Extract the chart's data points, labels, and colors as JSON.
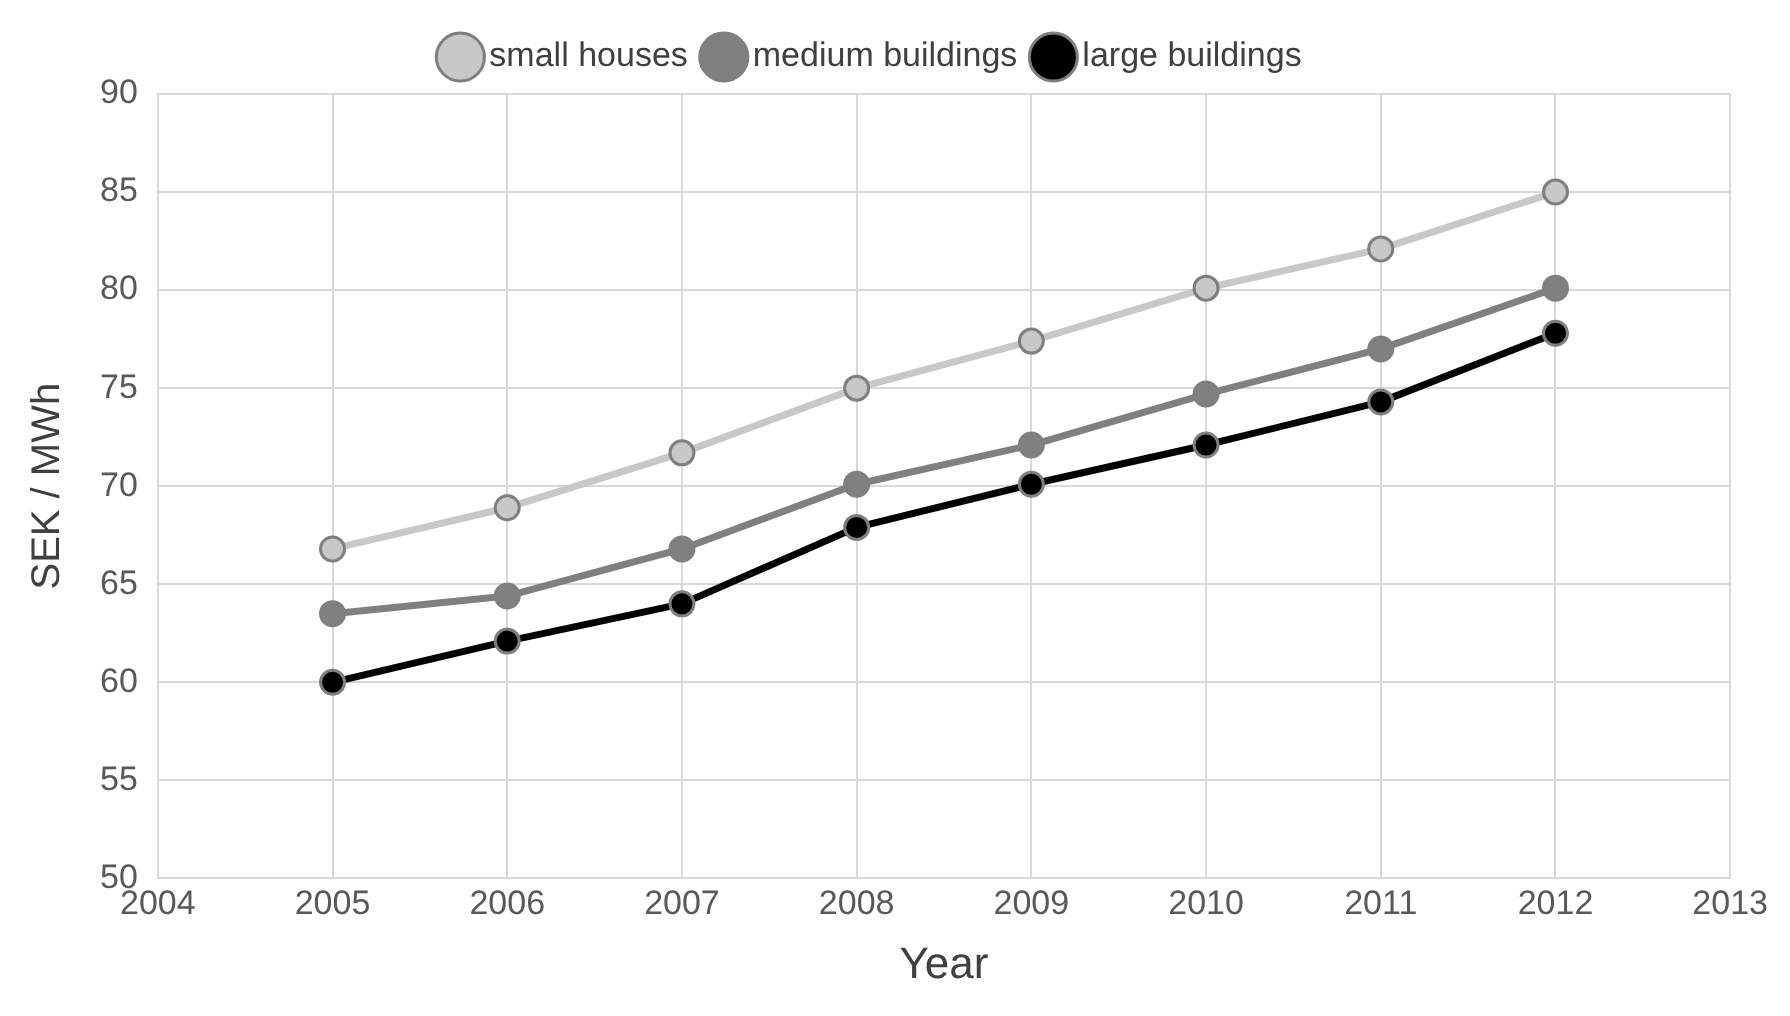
{
  "chart_data": {
    "type": "line",
    "xlabel": "Year",
    "ylabel": "SEK / MWh",
    "x": [
      2005,
      2006,
      2007,
      2008,
      2009,
      2010,
      2011,
      2012
    ],
    "series": [
      {
        "name": "small houses",
        "color": "#c8c8c8",
        "values": [
          66.8,
          68.9,
          71.7,
          75.0,
          77.4,
          80.1,
          82.1,
          85.0
        ]
      },
      {
        "name": "medium buildings",
        "color": "#808080",
        "values": [
          63.5,
          64.4,
          66.8,
          70.1,
          72.1,
          74.7,
          77.0,
          80.1
        ]
      },
      {
        "name": "large buildings",
        "color": "#000000",
        "values": [
          60.0,
          62.1,
          64.0,
          67.9,
          70.1,
          72.1,
          74.3,
          77.8
        ]
      }
    ],
    "xlim": [
      2004,
      2013
    ],
    "xticks": [
      2004,
      2005,
      2006,
      2007,
      2008,
      2009,
      2010,
      2011,
      2012,
      2013
    ],
    "ylim": [
      50,
      90
    ],
    "yticks": [
      50,
      55,
      60,
      65,
      70,
      75,
      80,
      85,
      90
    ],
    "grid": true,
    "legend": "top",
    "marker": "circle",
    "line_style": "solid"
  }
}
